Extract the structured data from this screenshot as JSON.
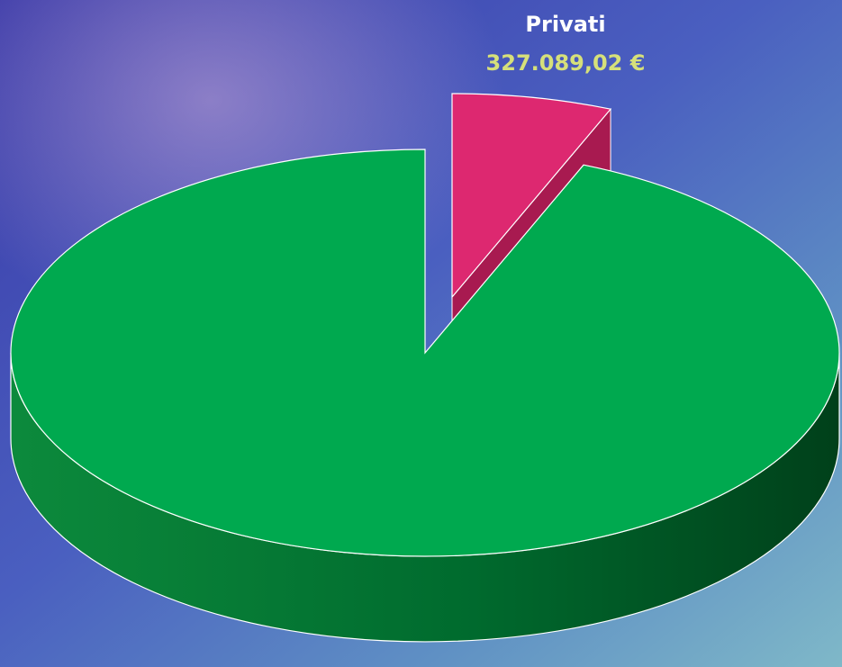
{
  "chart_data": {
    "type": "pie",
    "categories": [
      "Privati",
      null
    ],
    "values": [
      327089.02,
      4906000
    ],
    "value_labels": [
      "327.089,02 €",
      null
    ],
    "colors": [
      "#dd2870",
      "#00a94f"
    ]
  }
}
